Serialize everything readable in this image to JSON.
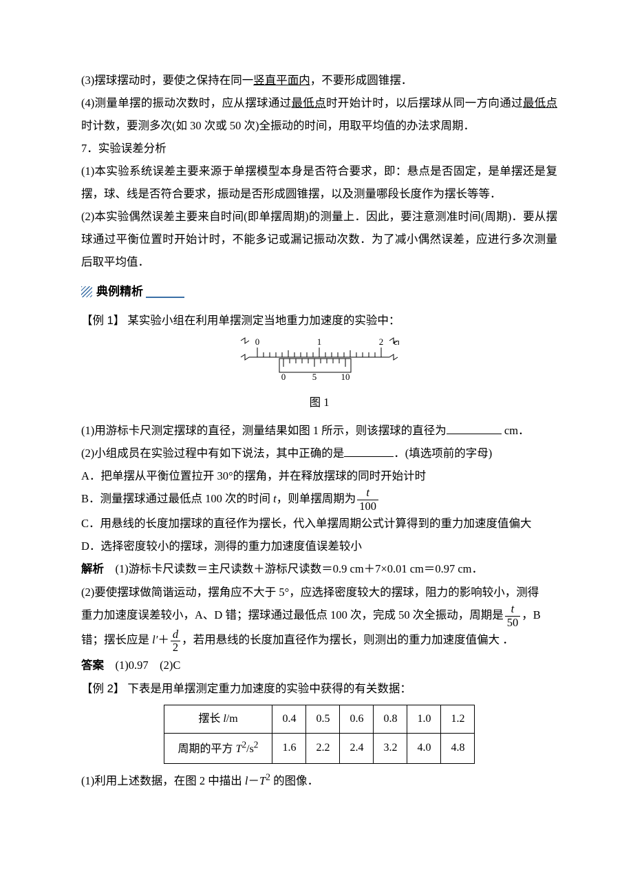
{
  "p3": {
    "pre": "(3)摆球摆动时，要使之保持在同一",
    "u": "竖直平面内",
    "post": "，不要形成圆锥摆．"
  },
  "p4": {
    "pre": "(4)测量单摆的振动次数时，应从摆球通过",
    "u1": "最低点",
    "mid": "时开始计时，以后摆球从同一方向通过",
    "u2": "最低点",
    "post": "时计数，要测多次(如 30 次或 50 次)全振动的时间，用取平均值的办法求周期．"
  },
  "p7": "7．实验误差分析",
  "err1": "(1)本实验系统误差主要来源于单摆模型本身是否符合要求，即：悬点是否固定，是单摆还是复摆，球、线是否符合要求，振动是否形成圆锥摆，以及测量哪段长度作为摆长等等．",
  "err2": "(2)本实验偶然误差主要来自时间(即单摆周期)的测量上．因此，要注意测准时间(周期)．要从摆球通过平衡位置时开始计时，不能多记或漏记振动次数．为了减小偶然误差，应进行多次测量后取平均值．",
  "section_title": "典例精析",
  "ex1": {
    "label": "【例 1】",
    "stem": "某实验小组在利用单摆测定当地重力加速度的实验中：",
    "fig_caption": "图 1",
    "caliper": {
      "main_start": 0,
      "main_end": 2,
      "unit": "cm",
      "vernier_labels": [
        "0",
        "5",
        "10"
      ],
      "reading_answer_cm": 0.97
    },
    "q1": {
      "pre": "(1)用游标卡尺测定摆球的直径，测量结果如图 1 所示，则该摆球的直径为",
      "post": " cm．"
    },
    "q2": {
      "pre": "(2)小组成员在实验过程中有如下说法，其中正确的是",
      "post": "．(填选项前的字母)"
    },
    "optA": "A．把单摆从平衡位置拉开 30°的摆角，并在释放摆球的同时开始计时",
    "optB": {
      "pre": "B．测量摆球通过最低点 100 次的时间 ",
      "var": "t",
      "mid": "，则单摆周期为",
      "num": "t",
      "den": "100"
    },
    "optC": "C．用悬线的长度加摆球的直径作为摆长，代入单摆周期公式计算得到的重力加速度值偏大",
    "optD": "D．选择密度较小的摆球，测得的重力加速度值误差较小",
    "sol_label": "解析",
    "sol1": "(1)游标卡尺读数＝主尺读数＋游标尺读数＝0.9 cm＋7×0.01 cm＝0.97 cm．",
    "sol2a": "(2)要使摆球做简谐运动，摆角应不大于 5°，应选择密度较大的摆球，阻力的影响较小，测得",
    "sol2b": {
      "pre": "重力加速度误差较小，A、D 错；摆球通过最低点 100 次，完成 50 次全振动，周期是",
      "num": "t",
      "den": "50",
      "post": "，B"
    },
    "sol2c": {
      "pre": "错；摆长应是 ",
      "lprime": "l′",
      "plus": "＋",
      "num": "d",
      "den": "2",
      "post": "，若用悬线的长度加直径作为摆长，则测出的重力加速度值偏大 ．"
    },
    "ans_label": "答案",
    "ans": "(1)0.97　(2)C"
  },
  "ex2": {
    "label": "【例 2】",
    "stem": "下表是用单摆测定重力加速度的实验中获得的有关数据：",
    "table": {
      "row1_head": "摆长 l/m",
      "row2_head": "周期的平方 T²/s²",
      "row1": [
        "0.4",
        "0.5",
        "0.6",
        "0.8",
        "1.0",
        "1.2"
      ],
      "row2": [
        "1.6",
        "2.2",
        "2.4",
        "3.2",
        "4.0",
        "4.8"
      ]
    },
    "q1": "(1)利用上述数据，在图 2 中描出 l－T² 的图像．"
  },
  "colors": {
    "accent": "#3a6fa6",
    "text": "#000000",
    "background": "#ffffff"
  }
}
